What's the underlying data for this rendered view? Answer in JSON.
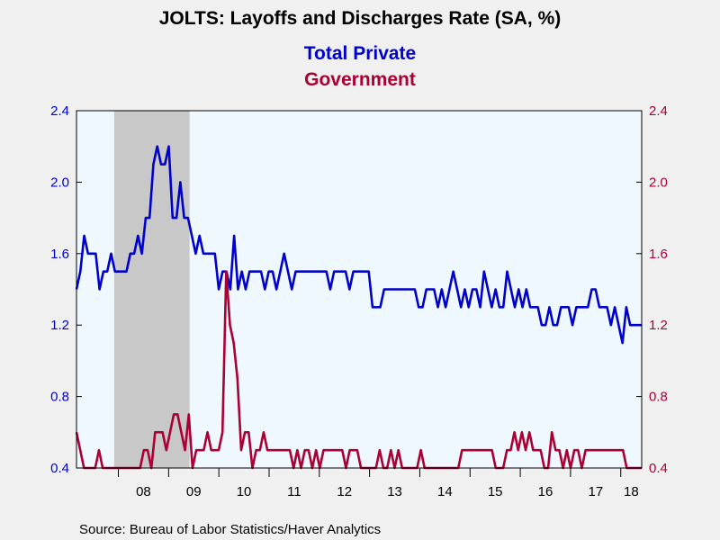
{
  "chart_data": {
    "type": "line",
    "title": "JOLTS: Layoffs and Discharges Rate (SA, %)",
    "source": "Source:  Bureau of Labor Statistics/Haver Analytics",
    "x_start": "2007-03",
    "x_end": "2018-06",
    "x_tick_labels": [
      "08",
      "09",
      "10",
      "11",
      "12",
      "13",
      "14",
      "15",
      "16",
      "17",
      "18"
    ],
    "ylim": [
      0.4,
      2.4
    ],
    "y_ticks": [
      "0.4",
      "0.8",
      "1.2",
      "1.6",
      "2.0",
      "2.4"
    ],
    "grid": false,
    "recession": {
      "start": "2007-12",
      "end": "2009-06",
      "color": "#c8c8c8"
    },
    "plot_background": "#f0f8ff",
    "left_axis_color": "#0000cc",
    "right_axis_color": "#aa0033",
    "series": [
      {
        "name": "Total Private",
        "color": "#0000cc",
        "values": [
          1.4,
          1.5,
          1.7,
          1.6,
          1.6,
          1.6,
          1.4,
          1.5,
          1.5,
          1.6,
          1.5,
          1.5,
          1.5,
          1.5,
          1.6,
          1.6,
          1.7,
          1.6,
          1.8,
          1.8,
          2.1,
          2.2,
          2.1,
          2.1,
          2.2,
          1.8,
          1.8,
          2.0,
          1.8,
          1.8,
          1.7,
          1.6,
          1.7,
          1.6,
          1.6,
          1.6,
          1.6,
          1.4,
          1.5,
          1.5,
          1.4,
          1.7,
          1.4,
          1.5,
          1.4,
          1.5,
          1.5,
          1.5,
          1.5,
          1.4,
          1.5,
          1.5,
          1.4,
          1.5,
          1.6,
          1.5,
          1.4,
          1.5,
          1.5,
          1.5,
          1.5,
          1.5,
          1.5,
          1.5,
          1.5,
          1.5,
          1.4,
          1.5,
          1.5,
          1.5,
          1.5,
          1.4,
          1.5,
          1.5,
          1.5,
          1.5,
          1.5,
          1.3,
          1.3,
          1.3,
          1.4,
          1.4,
          1.4,
          1.4,
          1.4,
          1.4,
          1.4,
          1.4,
          1.4,
          1.3,
          1.3,
          1.4,
          1.4,
          1.4,
          1.3,
          1.4,
          1.3,
          1.4,
          1.5,
          1.4,
          1.3,
          1.4,
          1.3,
          1.4,
          1.4,
          1.3,
          1.5,
          1.4,
          1.3,
          1.4,
          1.3,
          1.3,
          1.5,
          1.4,
          1.3,
          1.4,
          1.3,
          1.4,
          1.3,
          1.3,
          1.3,
          1.2,
          1.2,
          1.3,
          1.2,
          1.2,
          1.3,
          1.3,
          1.3,
          1.2,
          1.3,
          1.3,
          1.3,
          1.3,
          1.4,
          1.4,
          1.3,
          1.3,
          1.3,
          1.2,
          1.3,
          1.2,
          1.1,
          1.3,
          1.2,
          1.2,
          1.2,
          1.2
        ]
      },
      {
        "name": "Government",
        "color": "#aa0033",
        "values": [
          0.6,
          0.5,
          0.4,
          0.4,
          0.4,
          0.4,
          0.5,
          0.4,
          0.4,
          0.4,
          0.4,
          0.4,
          0.4,
          0.4,
          0.4,
          0.4,
          0.4,
          0.4,
          0.5,
          0.5,
          0.4,
          0.6,
          0.6,
          0.6,
          0.5,
          0.6,
          0.7,
          0.7,
          0.6,
          0.5,
          0.7,
          0.4,
          0.5,
          0.5,
          0.5,
          0.6,
          0.5,
          0.5,
          0.5,
          0.6,
          1.5,
          1.2,
          1.1,
          0.9,
          0.5,
          0.6,
          0.6,
          0.4,
          0.5,
          0.5,
          0.6,
          0.5,
          0.5,
          0.5,
          0.5,
          0.5,
          0.5,
          0.5,
          0.4,
          0.5,
          0.4,
          0.5,
          0.5,
          0.4,
          0.5,
          0.4,
          0.5,
          0.5,
          0.5,
          0.5,
          0.5,
          0.5,
          0.4,
          0.5,
          0.5,
          0.5,
          0.4,
          0.4,
          0.4,
          0.4,
          0.4,
          0.5,
          0.4,
          0.4,
          0.5,
          0.4,
          0.5,
          0.4,
          0.4,
          0.4,
          0.4,
          0.4,
          0.5,
          0.4,
          0.4,
          0.4,
          0.4,
          0.4,
          0.4,
          0.4,
          0.4,
          0.4,
          0.4,
          0.5,
          0.5,
          0.5,
          0.5,
          0.5,
          0.5,
          0.5,
          0.5,
          0.5,
          0.4,
          0.4,
          0.4,
          0.5,
          0.5,
          0.6,
          0.5,
          0.6,
          0.5,
          0.6,
          0.5,
          0.5,
          0.5,
          0.4,
          0.4,
          0.6,
          0.5,
          0.5,
          0.4,
          0.5,
          0.4,
          0.5,
          0.5,
          0.4,
          0.5,
          0.5,
          0.5,
          0.5,
          0.5,
          0.5,
          0.5,
          0.5,
          0.5,
          0.5,
          0.5,
          0.4,
          0.4,
          0.4,
          0.4,
          0.4
        ]
      }
    ]
  }
}
